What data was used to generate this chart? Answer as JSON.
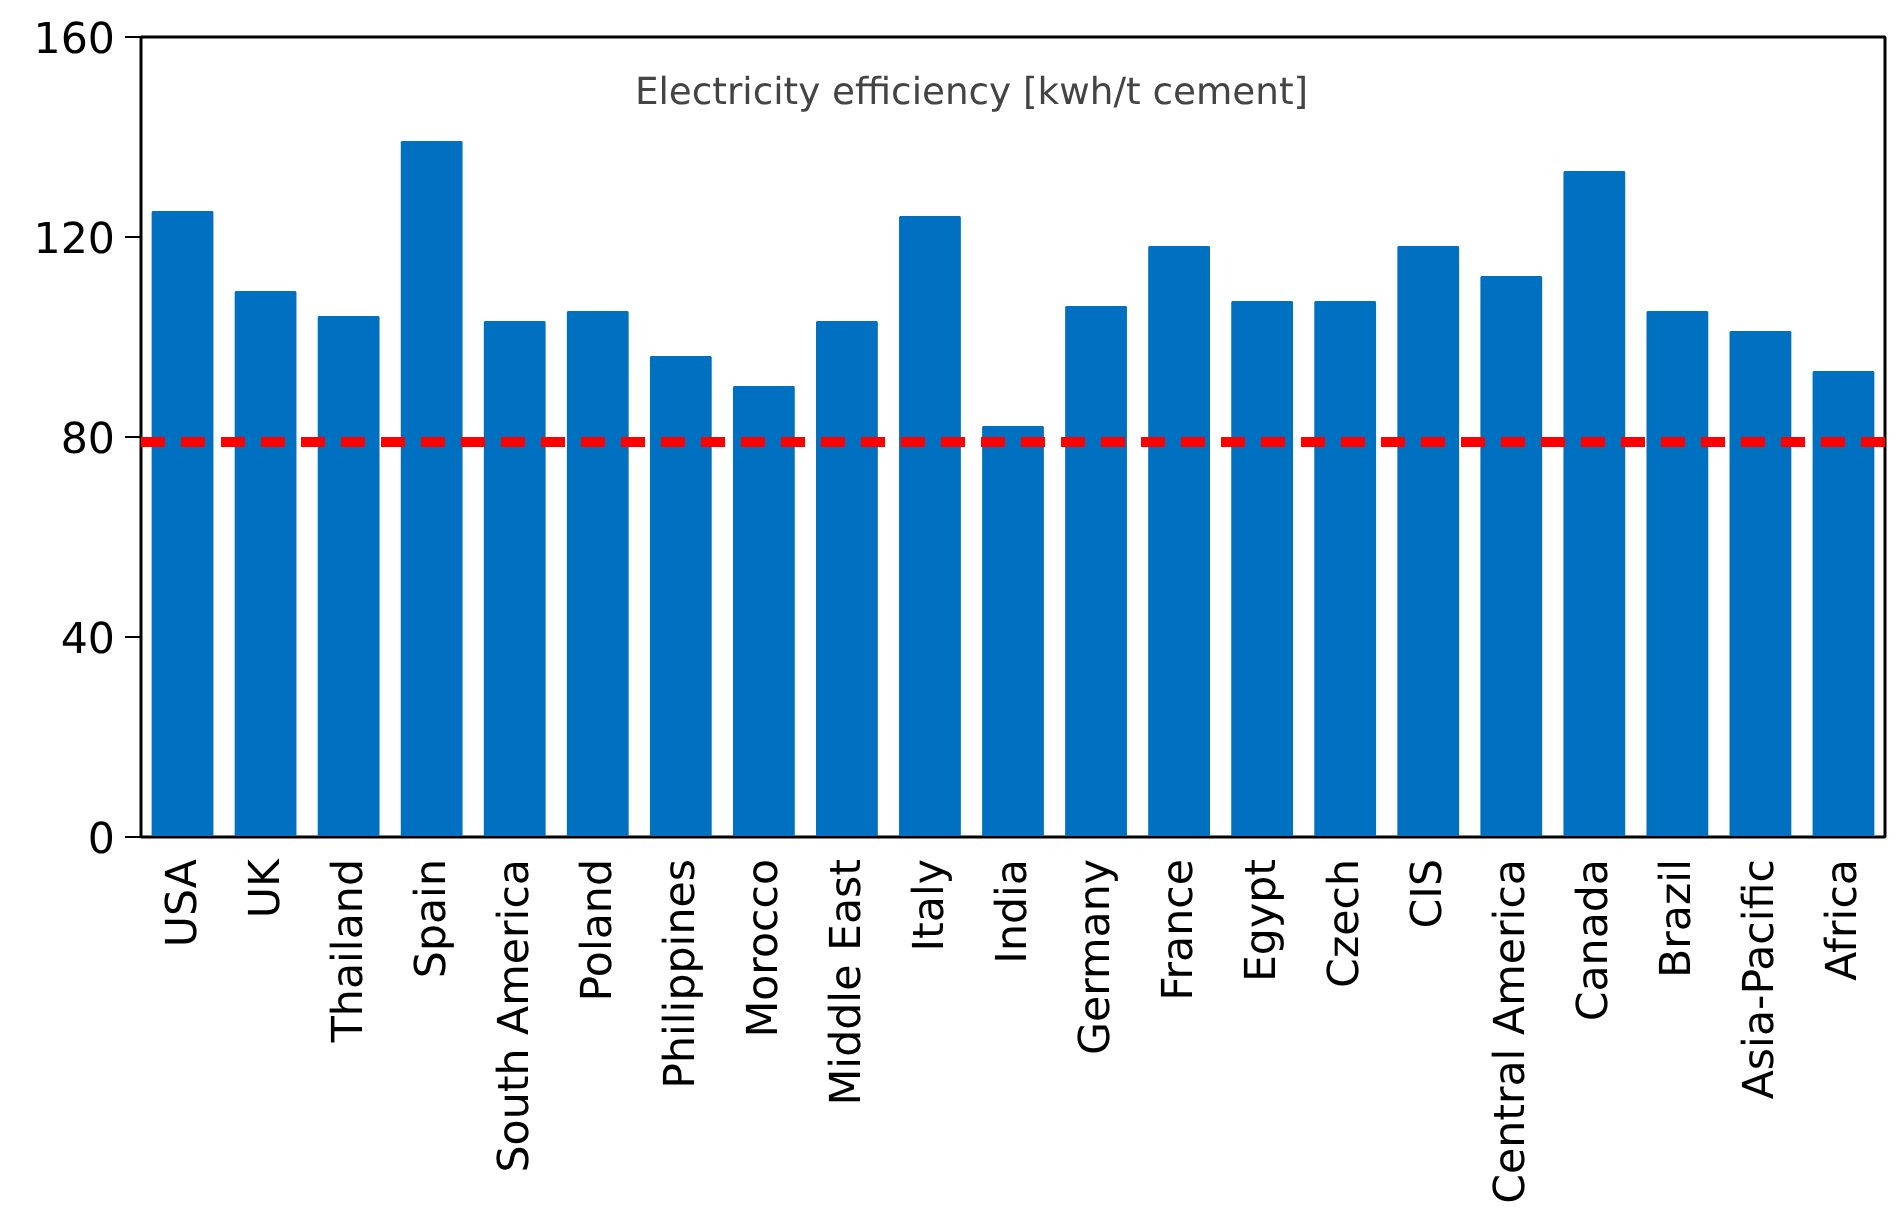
{
  "chart_data": {
    "type": "bar",
    "title": "Electricity efficiency [kwh/t cement]",
    "categories": [
      "USA",
      "UK",
      "Thailand",
      "Spain",
      "South America",
      "Poland",
      "Philippines",
      "Morocco",
      "Middle East",
      "Italy",
      "India",
      "Germany",
      "France",
      "Egypt",
      "Czech",
      "CIS",
      "Central America",
      "Canada",
      "Brazil",
      "Asia-Pacific",
      "Africa"
    ],
    "values": [
      125,
      109,
      104,
      139,
      103,
      105,
      96,
      90,
      103,
      124,
      82,
      106,
      118,
      107,
      107,
      118,
      112,
      133,
      105,
      101,
      93
    ],
    "color": "#0070c0",
    "ylim": [
      0,
      160
    ],
    "yticks": [
      0,
      40,
      80,
      120,
      160
    ],
    "grid": false,
    "ref_lines": [
      {
        "axis": "y",
        "value": 79,
        "color": "#ff0000",
        "line_style": "dashed"
      }
    ]
  }
}
